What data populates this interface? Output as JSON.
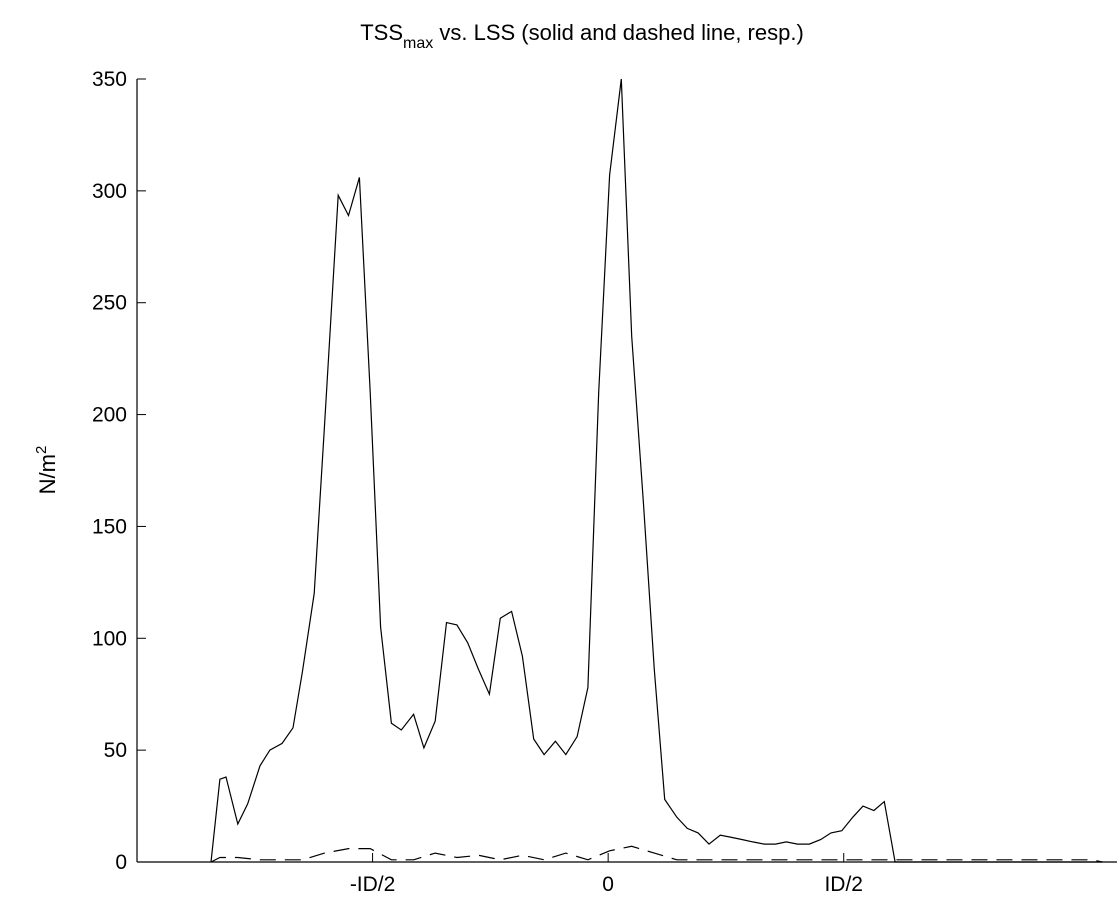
{
  "chart_data": {
    "type": "line",
    "title": {
      "main": "TSS",
      "subscript": "max",
      "rest": " vs. LSS (solid and dashed line, resp.)"
    },
    "ylabel": {
      "main": "N/m",
      "superscript": "2"
    },
    "xlabel": "",
    "xlim": [
      -1.0,
      1.08
    ],
    "ylim": [
      0,
      350
    ],
    "x_ticks": [
      {
        "value": -0.5,
        "label": "-ID/2"
      },
      {
        "value": 0,
        "label": "0"
      },
      {
        "value": 0.5,
        "label": "ID/2"
      }
    ],
    "y_ticks": [
      0,
      50,
      100,
      150,
      200,
      250,
      300,
      350
    ],
    "grid": false,
    "series": [
      {
        "style": "solid",
        "x": [
          -0.843,
          -0.824,
          -0.811,
          -0.786,
          -0.765,
          -0.739,
          -0.718,
          -0.692,
          -0.669,
          -0.649,
          -0.624,
          -0.602,
          -0.573,
          -0.551,
          -0.528,
          -0.505,
          -0.483,
          -0.46,
          -0.439,
          -0.413,
          -0.391,
          -0.367,
          -0.343,
          -0.321,
          -0.298,
          -0.275,
          -0.252,
          -0.229,
          -0.205,
          -0.182,
          -0.158,
          -0.136,
          -0.112,
          -0.09,
          -0.066,
          -0.043,
          -0.02,
          0.003,
          0.028,
          0.05,
          0.075,
          0.098,
          0.12,
          0.146,
          0.168,
          0.191,
          0.214,
          0.238,
          0.262,
          0.285,
          0.307,
          0.331,
          0.355,
          0.378,
          0.402,
          0.427,
          0.451,
          0.473,
          0.496,
          0.519,
          0.541,
          0.564,
          0.586,
          0.609,
          0.633,
          0.656,
          0.679,
          0.703,
          0.726,
          0.749,
          0.772,
          0.795,
          0.817,
          0.841,
          0.864,
          0.888,
          0.912,
          0.934,
          0.957,
          0.981,
          1.004,
          1.027,
          1.049
        ],
        "y": [
          0,
          37,
          38,
          17,
          26,
          43,
          50,
          53,
          60,
          85,
          120,
          195,
          298,
          289,
          306,
          210,
          105,
          62,
          59,
          66,
          51,
          63,
          107,
          106,
          98,
          86,
          75,
          109,
          112,
          92,
          55,
          48,
          54,
          48,
          56,
          78,
          210,
          307,
          350,
          235,
          160,
          86,
          28,
          20,
          15,
          13,
          8,
          12,
          11,
          10,
          9,
          8,
          8,
          9,
          8,
          8,
          10,
          13,
          14,
          20,
          25,
          23,
          27,
          0,
          0,
          0,
          0,
          0,
          0,
          0,
          0,
          0,
          0,
          0,
          0,
          0,
          0,
          0,
          0,
          0,
          0,
          0,
          0
        ]
      },
      {
        "style": "dashed",
        "x": [
          -0.843,
          -0.824,
          -0.786,
          -0.739,
          -0.692,
          -0.649,
          -0.602,
          -0.551,
          -0.505,
          -0.46,
          -0.413,
          -0.367,
          -0.321,
          -0.275,
          -0.229,
          -0.182,
          -0.136,
          -0.09,
          -0.043,
          0.003,
          0.05,
          0.098,
          0.146,
          0.191,
          0.238,
          0.285,
          0.331,
          0.378,
          0.427,
          0.473,
          0.519,
          0.564,
          0.609,
          0.656,
          0.703,
          0.749,
          0.795,
          0.841,
          0.888,
          0.934,
          0.981,
          1.027,
          1.049
        ],
        "y": [
          0,
          2,
          2,
          1,
          1,
          1,
          4,
          6,
          6,
          1,
          1,
          4,
          2,
          3,
          1,
          3,
          1,
          4,
          1,
          5,
          7,
          4,
          1,
          1,
          1,
          1,
          1,
          1,
          1,
          1,
          1,
          1,
          1,
          1,
          1,
          1,
          1,
          1,
          1,
          1,
          1,
          1,
          0
        ]
      }
    ]
  }
}
